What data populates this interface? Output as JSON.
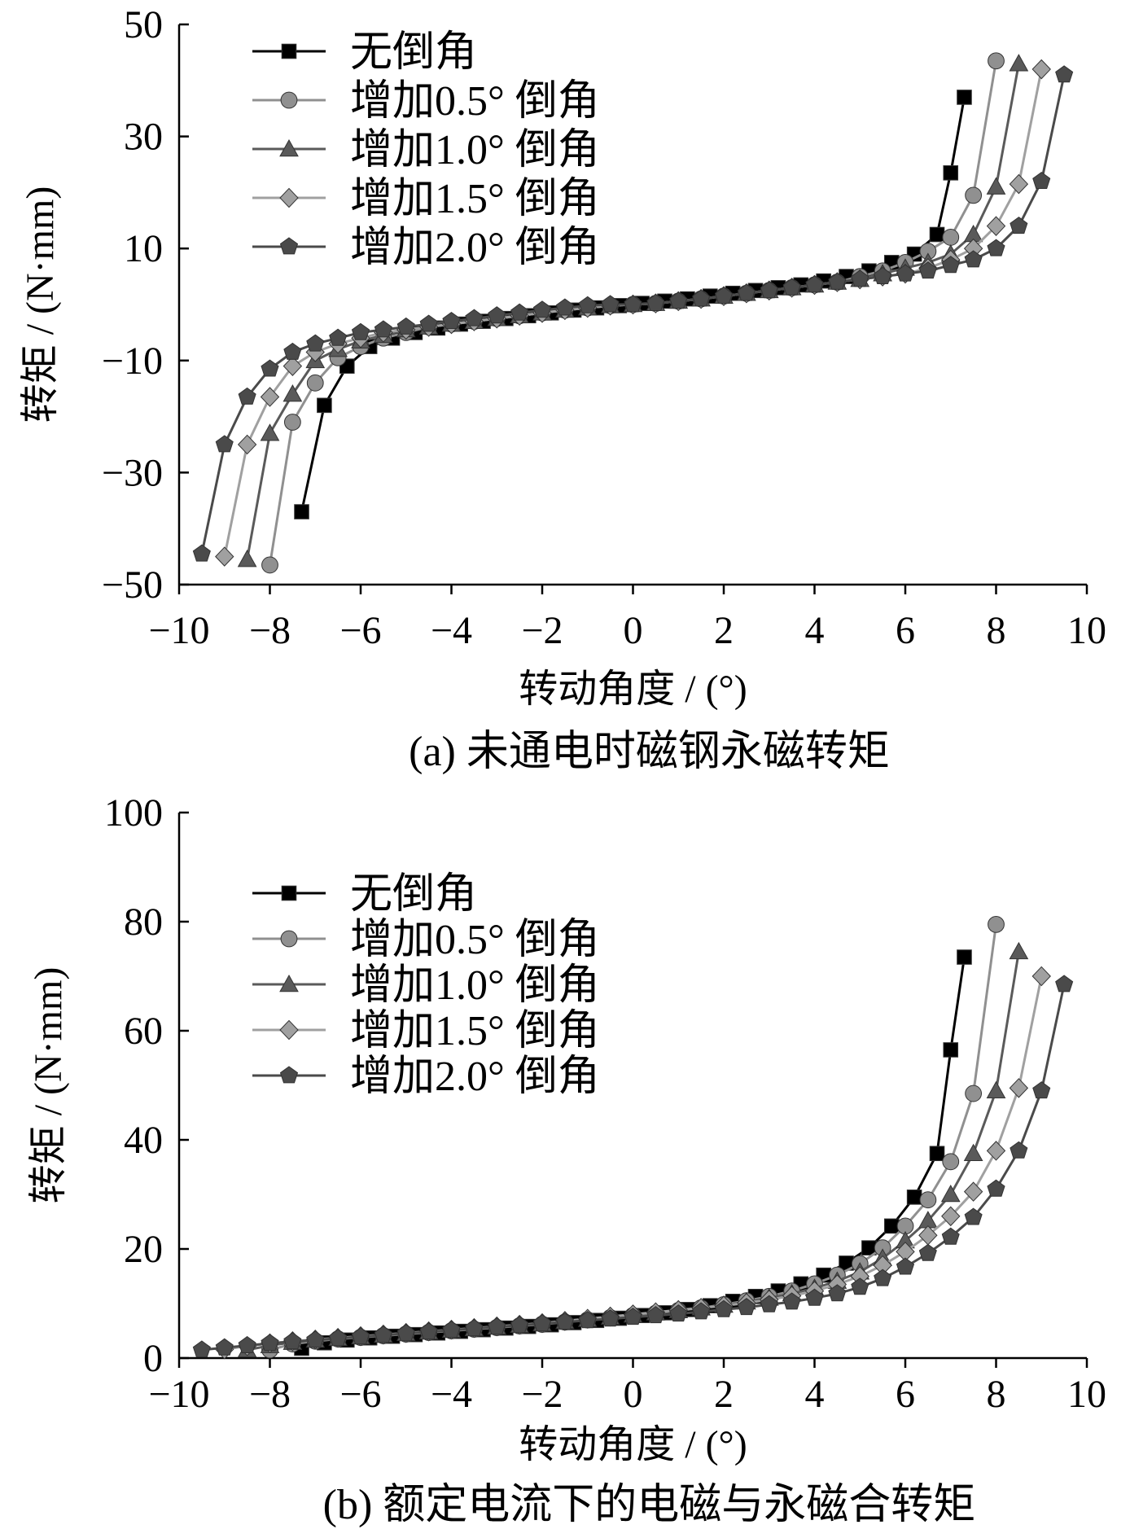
{
  "chart_data": [
    {
      "type": "line",
      "caption": "(a)  未通电时磁钢永磁转矩",
      "xlabel": "转动角度 / (°)",
      "ylabel": "转矩 / (N·mm)",
      "xlim": [
        -10,
        10
      ],
      "ylim": [
        -50,
        50
      ],
      "xticks": [
        -10,
        -8,
        -6,
        -4,
        -2,
        0,
        2,
        4,
        6,
        8,
        10
      ],
      "yticks": [
        -50,
        -30,
        -10,
        10,
        30,
        50
      ],
      "xtick_labels": [
        "−10",
        "−8",
        "−6",
        "−4",
        "−2",
        "0",
        "2",
        "4",
        "6",
        "8",
        "10"
      ],
      "ytick_labels": [
        "−50",
        "−30",
        "−10",
        "10",
        "30",
        "50"
      ],
      "legend_position": "top-left",
      "grid": false,
      "series": [
        {
          "name": "无倒角",
          "marker": "square",
          "color": "#000000",
          "x": [
            -7.3,
            -6.8,
            -6.3,
            -5.8,
            -5.3,
            -4.8,
            -4.3,
            -3.8,
            -3.3,
            -2.8,
            -2.3,
            -1.8,
            -1.3,
            -0.8,
            -0.3,
            0.2,
            0.7,
            1.2,
            1.7,
            2.2,
            2.7,
            3.2,
            3.7,
            4.2,
            4.7,
            5.2,
            5.7,
            6.2,
            6.7,
            7.0,
            7.3
          ],
          "y": [
            -37,
            -18,
            -11,
            -7.5,
            -6,
            -5,
            -4.2,
            -3.5,
            -3,
            -2.5,
            -2,
            -1.5,
            -1,
            -0.6,
            -0.2,
            0.2,
            0.6,
            1,
            1.5,
            2,
            2.5,
            3,
            3.5,
            4.2,
            5,
            6,
            7.5,
            9,
            12.5,
            23.5,
            37
          ]
        },
        {
          "name": "增加0.5° 倒角",
          "marker": "circle",
          "color": "#909090",
          "x": [
            -8.0,
            -7.5,
            -7.0,
            -6.5,
            -6.0,
            -5.5,
            -5.0,
            -4.5,
            -4.0,
            -3.5,
            -3.0,
            -2.5,
            -2.0,
            -1.5,
            -1.0,
            -0.5,
            0.0,
            0.5,
            1.0,
            1.5,
            2.0,
            2.5,
            3.0,
            3.5,
            4.0,
            4.5,
            5.0,
            5.5,
            6.0,
            6.5,
            7.0,
            7.5,
            8.0
          ],
          "y": [
            -46.5,
            -21,
            -14,
            -9.5,
            -7.5,
            -6,
            -5,
            -4,
            -3.5,
            -3,
            -2.5,
            -2,
            -1.5,
            -1,
            -0.6,
            -0.2,
            0,
            0.2,
            0.6,
            1,
            1.5,
            2,
            2.5,
            3,
            3.5,
            4,
            5,
            6,
            7.5,
            9.5,
            12,
            19.5,
            43.5
          ]
        },
        {
          "name": "增加1.0° 倒角",
          "marker": "triangle",
          "color": "#5a5a5a",
          "x": [
            -8.5,
            -8.0,
            -7.5,
            -7.0,
            -6.5,
            -6.0,
            -5.5,
            -5.0,
            -4.5,
            -4.0,
            -3.5,
            -3.0,
            -2.5,
            -2.0,
            -1.5,
            -1.0,
            -0.5,
            0.0,
            0.5,
            1.0,
            1.5,
            2.0,
            2.5,
            3.0,
            3.5,
            4.0,
            4.5,
            5.0,
            5.5,
            6.0,
            6.5,
            7.0,
            7.5,
            8.0,
            8.5
          ],
          "y": [
            -45.5,
            -23,
            -16,
            -10,
            -8,
            -6.5,
            -5.5,
            -4.5,
            -4,
            -3.5,
            -3,
            -2.5,
            -2,
            -1.5,
            -1,
            -0.6,
            -0.2,
            0,
            0.2,
            0.6,
            1,
            1.5,
            2,
            2.5,
            3,
            3.5,
            4,
            4.5,
            5.5,
            6.5,
            7.5,
            9,
            12.5,
            21,
            43
          ]
        },
        {
          "name": "增加1.5° 倒角",
          "marker": "diamond",
          "color": "#a0a0a0",
          "x": [
            -9.0,
            -8.5,
            -8.0,
            -7.5,
            -7.0,
            -6.5,
            -6.0,
            -5.5,
            -5.0,
            -4.5,
            -4.0,
            -3.5,
            -3.0,
            -2.5,
            -2.0,
            -1.5,
            -1.0,
            -0.5,
            0.0,
            0.5,
            1.0,
            1.5,
            2.0,
            2.5,
            3.0,
            3.5,
            4.0,
            4.5,
            5.0,
            5.5,
            6.0,
            6.5,
            7.0,
            7.5,
            8.0,
            8.5,
            9.0
          ],
          "y": [
            -45,
            -25,
            -16.5,
            -11,
            -8.5,
            -7,
            -6,
            -5,
            -4.5,
            -4,
            -3.5,
            -3,
            -2.5,
            -2,
            -1.5,
            -1,
            -0.6,
            -0.2,
            0,
            0.2,
            0.6,
            1,
            1.5,
            2,
            2.5,
            3,
            3.5,
            4,
            4.5,
            5,
            5.5,
            6.5,
            8,
            10,
            14,
            21.5,
            42
          ]
        },
        {
          "name": "增加2.0° 倒角",
          "marker": "pentagon",
          "color": "#4a4a4a",
          "x": [
            -9.5,
            -9.0,
            -8.5,
            -8.0,
            -7.5,
            -7.0,
            -6.5,
            -6.0,
            -5.5,
            -5.0,
            -4.5,
            -4.0,
            -3.5,
            -3.0,
            -2.5,
            -2.0,
            -1.5,
            -1.0,
            -0.5,
            0.0,
            0.5,
            1.0,
            1.5,
            2.0,
            2.5,
            3.0,
            3.5,
            4.0,
            4.5,
            5.0,
            5.5,
            6.0,
            6.5,
            7.0,
            7.5,
            8.0,
            8.5,
            9.0,
            9.5
          ],
          "y": [
            -44.5,
            -25,
            -16.5,
            -11.5,
            -8.5,
            -7,
            -6,
            -5,
            -4.5,
            -4,
            -3.5,
            -3,
            -2.5,
            -2,
            -1.5,
            -1,
            -0.6,
            -0.2,
            0,
            0,
            0.2,
            0.6,
            1,
            1.5,
            2,
            2.5,
            3,
            3.5,
            4,
            4.5,
            5,
            5.5,
            6,
            7,
            8,
            10,
            14,
            22,
            41
          ]
        }
      ]
    },
    {
      "type": "line",
      "caption": "(b)  额定电流下的电磁与永磁合转矩",
      "xlabel": "转动角度 / (°)",
      "ylabel": "转矩 / (N·mm)",
      "xlim": [
        -10,
        10
      ],
      "ylim": [
        0,
        100
      ],
      "xticks": [
        -10,
        -8,
        -6,
        -4,
        -2,
        0,
        2,
        4,
        6,
        8,
        10
      ],
      "yticks": [
        0,
        20,
        40,
        60,
        80,
        100
      ],
      "xtick_labels": [
        "−10",
        "−8",
        "−6",
        "−4",
        "−2",
        "0",
        "2",
        "4",
        "6",
        "8",
        "10"
      ],
      "ytick_labels": [
        "0",
        "20",
        "40",
        "60",
        "80",
        "100"
      ],
      "legend_position": "top-left",
      "grid": false,
      "series": [
        {
          "name": "无倒角",
          "marker": "square",
          "color": "#000000",
          "x": [
            -7.3,
            -6.8,
            -6.3,
            -5.8,
            -5.3,
            -4.8,
            -4.3,
            -3.8,
            -3.3,
            -2.8,
            -2.3,
            -1.8,
            -1.3,
            -0.8,
            -0.3,
            0.2,
            0.7,
            1.2,
            1.7,
            2.2,
            2.7,
            3.2,
            3.7,
            4.2,
            4.7,
            5.2,
            5.7,
            6.2,
            6.7,
            7.0,
            7.3
          ],
          "y": [
            1.8,
            2.8,
            3.3,
            3.7,
            4.0,
            4.3,
            4.6,
            4.9,
            5.2,
            5.5,
            5.8,
            6.1,
            6.5,
            6.9,
            7.3,
            7.8,
            8.3,
            8.9,
            9.6,
            10.4,
            11.3,
            12.3,
            13.6,
            15.2,
            17.4,
            20.2,
            24.2,
            29.5,
            37.5,
            56.5,
            73.5
          ]
        },
        {
          "name": "增加0.5° 倒角",
          "marker": "circle",
          "color": "#909090",
          "x": [
            -8.0,
            -7.5,
            -7.0,
            -6.5,
            -6.0,
            -5.5,
            -5.0,
            -4.5,
            -4.0,
            -3.5,
            -3.0,
            -2.5,
            -2.0,
            -1.5,
            -1.0,
            -0.5,
            0.0,
            0.5,
            1.0,
            1.5,
            2.0,
            2.5,
            3.0,
            3.5,
            4.0,
            4.5,
            5.0,
            5.5,
            6.0,
            6.5,
            7.0,
            7.5,
            8.0
          ],
          "y": [
            1.5,
            2.6,
            3.1,
            3.5,
            3.8,
            4.1,
            4.4,
            4.7,
            5.0,
            5.3,
            5.6,
            5.9,
            6.2,
            6.6,
            7.0,
            7.4,
            7.8,
            8.2,
            8.7,
            9.2,
            9.8,
            10.5,
            11.3,
            12.3,
            13.6,
            15.2,
            17.3,
            20.2,
            24.2,
            29.0,
            36.0,
            48.5,
            79.5
          ]
        },
        {
          "name": "增加1.0° 倒角",
          "marker": "triangle",
          "color": "#5a5a5a",
          "x": [
            -8.5,
            -8.0,
            -7.5,
            -7.0,
            -6.5,
            -6.0,
            -5.5,
            -5.0,
            -4.5,
            -4.0,
            -3.5,
            -3.0,
            -2.5,
            -2.0,
            -1.5,
            -1.0,
            -0.5,
            0.0,
            0.5,
            1.0,
            1.5,
            2.0,
            2.5,
            3.0,
            3.5,
            4.0,
            4.5,
            5.0,
            5.5,
            6.0,
            6.5,
            7.0,
            7.5,
            8.0,
            8.5
          ],
          "y": [
            1.5,
            2.3,
            2.9,
            3.3,
            3.6,
            3.9,
            4.2,
            4.5,
            4.8,
            5.1,
            5.4,
            5.7,
            6.0,
            6.3,
            6.7,
            7.1,
            7.5,
            7.9,
            8.3,
            8.7,
            9.2,
            9.7,
            10.3,
            11.0,
            11.8,
            12.8,
            14.1,
            15.8,
            18.3,
            21.5,
            25.2,
            30.0,
            37.5,
            49.0,
            74.5
          ]
        },
        {
          "name": "增加1.5° 倒角",
          "marker": "diamond",
          "color": "#a0a0a0",
          "x": [
            -9.0,
            -8.5,
            -8.0,
            -7.5,
            -7.0,
            -6.5,
            -6.0,
            -5.5,
            -5.0,
            -4.5,
            -4.0,
            -3.5,
            -3.0,
            -2.5,
            -2.0,
            -1.5,
            -1.0,
            -0.5,
            0.0,
            0.5,
            1.0,
            1.5,
            2.0,
            2.5,
            3.0,
            3.5,
            4.0,
            4.5,
            5.0,
            5.5,
            6.0,
            6.5,
            7.0,
            7.5,
            8.0,
            8.5,
            9.0
          ],
          "y": [
            1.6,
            2.2,
            2.7,
            3.1,
            3.4,
            3.7,
            4.0,
            4.3,
            4.6,
            4.9,
            5.2,
            5.5,
            5.8,
            6.1,
            6.4,
            6.8,
            7.2,
            7.6,
            8.0,
            8.4,
            8.8,
            9.2,
            9.6,
            10.1,
            10.7,
            11.4,
            12.3,
            13.5,
            15.0,
            17.0,
            19.5,
            22.5,
            26.0,
            30.5,
            38.0,
            49.5,
            70.0
          ]
        },
        {
          "name": "增加2.0° 倒角",
          "marker": "pentagon",
          "color": "#4a4a4a",
          "x": [
            -9.5,
            -9.0,
            -8.5,
            -8.0,
            -7.5,
            -7.0,
            -6.5,
            -6.0,
            -5.5,
            -5.0,
            -4.5,
            -4.0,
            -3.5,
            -3.0,
            -2.5,
            -2.0,
            -1.5,
            -1.0,
            -0.5,
            0.0,
            0.5,
            1.0,
            1.5,
            2.0,
            2.5,
            3.0,
            3.5,
            4.0,
            4.5,
            5.0,
            5.5,
            6.0,
            6.5,
            7.0,
            7.5,
            8.0,
            8.5,
            9.0,
            9.5
          ],
          "y": [
            1.5,
            1.9,
            2.3,
            2.7,
            3.0,
            3.3,
            3.6,
            3.9,
            4.2,
            4.5,
            4.8,
            5.1,
            5.4,
            5.7,
            6.0,
            6.3,
            6.6,
            6.9,
            7.2,
            7.5,
            7.8,
            8.1,
            8.5,
            8.9,
            9.3,
            9.8,
            10.3,
            11.0,
            11.8,
            13.0,
            14.6,
            16.7,
            19.2,
            22.2,
            25.8,
            31.0,
            38.0,
            49.0,
            68.5
          ]
        }
      ]
    }
  ]
}
